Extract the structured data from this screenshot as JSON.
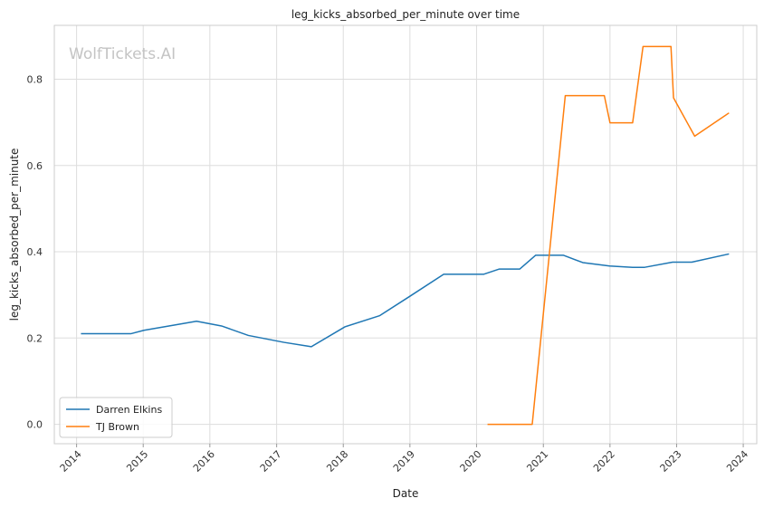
{
  "chart_data": {
    "type": "line",
    "title": "leg_kicks_absorbed_per_minute over time",
    "xlabel": "Date",
    "ylabel": "leg_kicks_absorbed_per_minute",
    "watermark": "WolfTickets.AI",
    "xlim": [
      "2013-09-01",
      "2024-03-15"
    ],
    "ylim": [
      -0.045,
      0.925
    ],
    "x_ticks": [
      "2014",
      "2015",
      "2016",
      "2017",
      "2018",
      "2019",
      "2020",
      "2021",
      "2022",
      "2023",
      "2024"
    ],
    "y_ticks": [
      "0.0",
      "0.2",
      "0.4",
      "0.6",
      "0.8"
    ],
    "grid": true,
    "legend_position": "lower-left",
    "series": [
      {
        "name": "Darren Elkins",
        "color": "#1f77b4",
        "points": [
          [
            "2014-01-25",
            0.21
          ],
          [
            "2014-05-20",
            0.21
          ],
          [
            "2014-10-25",
            0.21
          ],
          [
            "2015-01-05",
            0.218
          ],
          [
            "2015-10-20",
            0.239
          ],
          [
            "2016-03-05",
            0.228
          ],
          [
            "2016-07-30",
            0.206
          ],
          [
            "2017-02-10",
            0.19
          ],
          [
            "2017-07-10",
            0.18
          ],
          [
            "2018-01-10",
            0.226
          ],
          [
            "2018-07-20",
            0.252
          ],
          [
            "2018-12-25",
            0.295
          ],
          [
            "2019-07-05",
            0.348
          ],
          [
            "2019-11-30",
            0.348
          ],
          [
            "2020-02-10",
            0.348
          ],
          [
            "2020-05-05",
            0.36
          ],
          [
            "2020-08-25",
            0.36
          ],
          [
            "2020-11-20",
            0.392
          ],
          [
            "2021-04-20",
            0.392
          ],
          [
            "2021-08-05",
            0.375
          ],
          [
            "2021-12-30",
            0.367
          ],
          [
            "2022-05-05",
            0.364
          ],
          [
            "2022-07-10",
            0.364
          ],
          [
            "2022-12-10",
            0.376
          ],
          [
            "2023-03-25",
            0.376
          ],
          [
            "2023-10-15",
            0.395
          ]
        ]
      },
      {
        "name": "TJ Brown",
        "color": "#ff7f0e",
        "points": [
          [
            "2020-03-01",
            0.0
          ],
          [
            "2020-08-01",
            0.0
          ],
          [
            "2020-11-01",
            0.0
          ],
          [
            "2021-05-01",
            0.762
          ],
          [
            "2021-08-01",
            0.762
          ],
          [
            "2021-12-01",
            0.762
          ],
          [
            "2022-01-01",
            0.699
          ],
          [
            "2022-05-05",
            0.699
          ],
          [
            "2022-07-01",
            0.876
          ],
          [
            "2022-09-20",
            0.876
          ],
          [
            "2022-12-01",
            0.876
          ],
          [
            "2022-12-15",
            0.757
          ],
          [
            "2023-04-10",
            0.668
          ],
          [
            "2023-10-15",
            0.722
          ]
        ]
      }
    ]
  }
}
